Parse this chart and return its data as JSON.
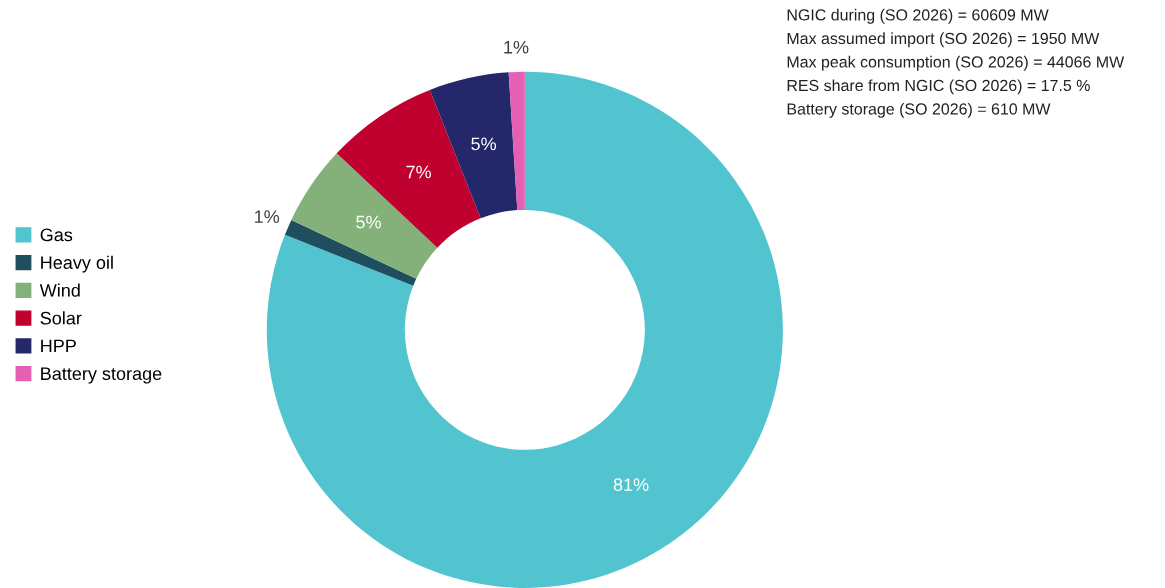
{
  "chart_data": {
    "type": "donut",
    "categories": [
      "Gas",
      "Heavy oil",
      "Wind",
      "Solar",
      "HPP",
      "Battery storage"
    ],
    "values": [
      81,
      1,
      5,
      7,
      5,
      1
    ],
    "colors": [
      "#52c4cf",
      "#1f4e5f",
      "#84b07a",
      "#c0002e",
      "#24286b",
      "#e55fb3"
    ],
    "value_labels": [
      "81%",
      "1%",
      "5%",
      "7%",
      "5%",
      "1%"
    ],
    "legend": "left",
    "annotations": [
      "NGIC during (SO 2026) = 60609 MW",
      "Max assumed import (SO 2026) = 1950 MW",
      "Max peak consumption (SO 2026) = 44066 MW",
      "RES share from NGIC (SO 2026) = 17.5 %",
      "Battery storage (SO 2026) = 610 MW"
    ]
  }
}
